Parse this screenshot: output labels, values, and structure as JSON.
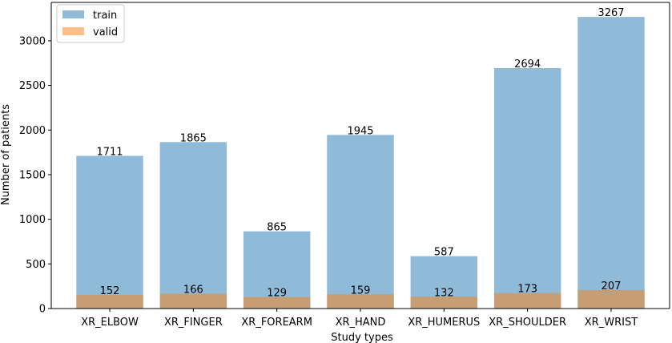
{
  "chart_data": {
    "type": "bar",
    "title": "",
    "xlabel": "Study types",
    "ylabel": "Number of patients",
    "categories": [
      "XR_ELBOW",
      "XR_FINGER",
      "XR_FOREARM",
      "XR_HAND",
      "XR_HUMERUS",
      "XR_SHOULDER",
      "XR_WRIST"
    ],
    "series": [
      {
        "name": "train",
        "values": [
          1711,
          1865,
          865,
          1945,
          587,
          2694,
          3267
        ],
        "color": "#1f77b4",
        "opacity": 0.5
      },
      {
        "name": "valid",
        "values": [
          152,
          166,
          129,
          159,
          132,
          173,
          207
        ],
        "color": "#ff7f0e",
        "opacity": 0.5
      }
    ],
    "overlaid": true,
    "ylim": [
      0,
      3430
    ],
    "yticks": [
      0,
      500,
      1000,
      1500,
      2000,
      2500,
      3000
    ],
    "grid": false,
    "legend": "top-left"
  }
}
